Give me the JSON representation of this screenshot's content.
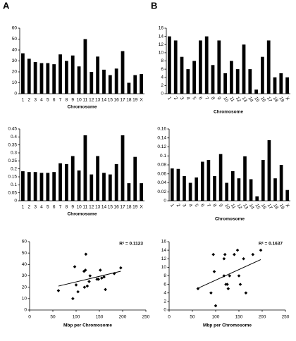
{
  "chart_data": [
    {
      "type": "bar",
      "panel": "A",
      "x_label": "Chromosome",
      "color": "#000000",
      "categories": [
        "1",
        "2",
        "3",
        "4",
        "5",
        "6",
        "7",
        "8",
        "9",
        "10",
        "11",
        "12",
        "13",
        "14",
        "15",
        "16",
        "17",
        "18",
        "19",
        "X"
      ],
      "values": [
        37,
        32,
        29,
        28,
        28,
        27,
        36,
        30,
        35,
        25,
        50,
        20,
        34,
        22,
        17,
        23,
        39,
        10,
        17,
        18
      ],
      "ylim": [
        0,
        60
      ],
      "yticks": [
        0,
        10,
        20,
        30,
        40,
        50,
        60
      ]
    },
    {
      "type": "bar",
      "x_label": "Chromosome",
      "color": "#000000",
      "categories": [
        "1",
        "2",
        "3",
        "4",
        "5",
        "6",
        "7",
        "8",
        "9",
        "10",
        "11",
        "12",
        "13",
        "14",
        "15",
        "16",
        "17",
        "18",
        "19",
        "X"
      ],
      "values": [
        0.185,
        0.18,
        0.18,
        0.175,
        0.175,
        0.18,
        0.235,
        0.23,
        0.28,
        0.19,
        0.41,
        0.165,
        0.28,
        0.175,
        0.165,
        0.23,
        0.41,
        0.11,
        0.275,
        0.11
      ],
      "ylim": [
        0,
        0.45
      ],
      "yticks": [
        0,
        0.05,
        0.1,
        0.15,
        0.2,
        0.25,
        0.3,
        0.35,
        0.4,
        0.45
      ]
    },
    {
      "type": "scatter",
      "x_label": "Mbp per Chromosome",
      "annotation": "R² = 0.1123",
      "color": "#000000",
      "x": [
        62,
        93,
        97,
        100,
        104,
        117,
        120,
        118,
        121,
        124,
        128,
        130,
        145,
        148,
        152,
        155,
        160,
        163,
        182,
        196
      ],
      "y": [
        17,
        10,
        38,
        22,
        16,
        34,
        35,
        20,
        49,
        21,
        25,
        30,
        27,
        27,
        35,
        28,
        29,
        18,
        32,
        37
      ],
      "trendline": {
        "x": [
          62,
          196
        ],
        "y": [
          21,
          34
        ]
      },
      "xlim": [
        0,
        250
      ],
      "xticks": [
        0,
        50,
        100,
        150,
        200,
        250
      ],
      "ylim": [
        0,
        60
      ],
      "yticks": [
        0,
        10,
        20,
        30,
        40,
        50,
        60
      ]
    },
    {
      "type": "bar",
      "panel": "B",
      "x_label": "Chromosome",
      "color": "#000000",
      "rotate_labels": true,
      "categories": [
        "1",
        "2",
        "3",
        "4",
        "5",
        "6",
        "7",
        "8",
        "9",
        "10",
        "11",
        "12",
        "13",
        "14",
        "15",
        "16",
        "17",
        "18",
        "19",
        "X"
      ],
      "values": [
        14,
        13,
        9,
        6,
        8,
        13,
        14,
        7,
        13,
        5,
        8,
        6,
        12,
        6,
        1,
        9,
        13,
        4,
        5,
        4
      ],
      "ylim": [
        0,
        16
      ],
      "yticks": [
        0,
        2,
        4,
        6,
        8,
        10,
        12,
        14,
        16
      ]
    },
    {
      "type": "bar",
      "x_label": "Chromosome",
      "color": "#000000",
      "rotate_labels": true,
      "categories": [
        "1",
        "2",
        "3",
        "4",
        "5",
        "6",
        "7",
        "8",
        "9",
        "10",
        "11",
        "12",
        "13",
        "14",
        "15",
        "16",
        "17",
        "18",
        "19",
        "X"
      ],
      "values": [
        0.072,
        0.071,
        0.055,
        0.04,
        0.052,
        0.087,
        0.091,
        0.055,
        0.104,
        0.04,
        0.066,
        0.05,
        0.099,
        0.048,
        0.01,
        0.091,
        0.135,
        0.05,
        0.08,
        0.024
      ],
      "ylim": [
        0,
        0.16
      ],
      "yticks": [
        0,
        0.02,
        0.04,
        0.06,
        0.08,
        0.1,
        0.12,
        0.14,
        0.16
      ]
    },
    {
      "type": "scatter",
      "x_label": "Mbp per Chromosome",
      "annotation": "R² = 0.1637",
      "color": "#000000",
      "x": [
        62,
        90,
        95,
        97,
        100,
        118,
        120,
        118,
        122,
        125,
        127,
        130,
        140,
        147,
        150,
        153,
        160,
        165,
        180,
        197
      ],
      "y": [
        5,
        4,
        13,
        9,
        1,
        12,
        13,
        8,
        6,
        6,
        5,
        8,
        13,
        14,
        8,
        6,
        12,
        4,
        13,
        14
      ],
      "trendline": {
        "x": [
          60,
          197
        ],
        "y": [
          5,
          11.8
        ]
      },
      "xlim": [
        0,
        250
      ],
      "xticks": [
        0,
        50,
        100,
        150,
        200,
        250
      ],
      "ylim": [
        0,
        16
      ],
      "yticks": [
        0,
        2,
        4,
        6,
        8,
        10,
        12,
        14,
        16
      ]
    }
  ]
}
